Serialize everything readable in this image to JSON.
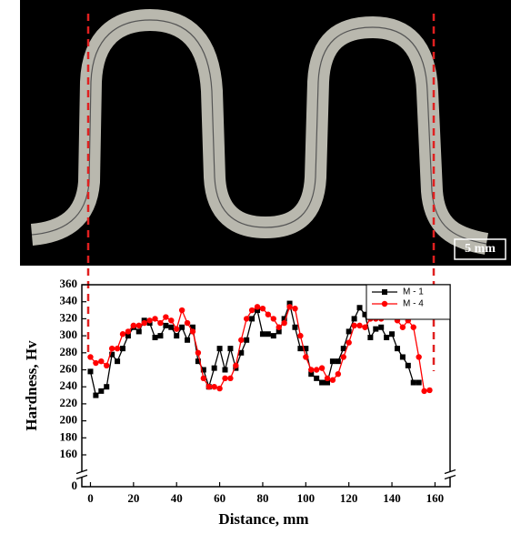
{
  "image": {
    "scale_bar": "5 mm"
  },
  "chart_data": {
    "type": "line",
    "x_label": "Distance, mm",
    "y_label": "Hardness, Hv",
    "x": [
      0,
      2.5,
      5,
      7.5,
      10,
      12.5,
      15,
      17.5,
      20,
      22.5,
      25,
      27.5,
      30,
      32.5,
      35,
      37.5,
      40,
      42.5,
      45,
      47.5,
      50,
      52.5,
      55,
      57.5,
      60,
      62.5,
      65,
      67.5,
      70,
      72.5,
      75,
      77.5,
      80,
      82.5,
      85,
      87.5,
      90,
      92.5,
      95,
      97.5,
      100,
      102.5,
      105,
      107.5,
      110,
      112.5,
      115,
      117.5,
      120,
      122.5,
      125,
      127.5,
      130,
      132.5,
      135,
      137.5,
      140,
      142.5,
      145,
      147.5,
      150,
      152.5,
      155,
      157.5
    ],
    "series": [
      {
        "name": "M - 1",
        "color": "#000000",
        "marker": "square",
        "values": [
          258,
          230,
          235,
          240,
          278,
          270,
          285,
          300,
          310,
          305,
          318,
          315,
          298,
          300,
          312,
          310,
          300,
          310,
          295,
          310,
          270,
          260,
          240,
          262,
          285,
          260,
          285,
          262,
          280,
          295,
          320,
          330,
          302,
          302,
          300,
          305,
          320,
          338,
          310,
          285,
          285,
          255,
          250,
          245,
          245,
          270,
          270,
          285,
          305,
          320,
          333,
          325,
          298,
          308,
          310,
          298,
          302,
          285,
          275,
          265,
          245,
          245,
          null,
          null
        ]
      },
      {
        "name": "M - 4",
        "color": "#ff0000",
        "marker": "circle",
        "values": [
          275,
          268,
          270,
          265,
          285,
          285,
          302,
          305,
          312,
          312,
          315,
          318,
          320,
          315,
          322,
          318,
          308,
          330,
          315,
          305,
          280,
          250,
          240,
          240,
          238,
          250,
          250,
          265,
          295,
          320,
          330,
          334,
          332,
          325,
          320,
          310,
          315,
          334,
          332,
          300,
          275,
          260,
          260,
          262,
          250,
          248,
          255,
          275,
          292,
          312,
          312,
          310,
          320,
          320,
          320,
          325,
          330,
          318,
          310,
          318,
          310,
          275,
          235,
          236
        ]
      }
    ],
    "xlim": [
      -4,
      167
    ],
    "xticks": [
      0,
      20,
      40,
      60,
      80,
      100,
      120,
      140,
      160
    ],
    "ylim": [
      0,
      360
    ],
    "yticks": [
      0,
      160,
      180,
      200,
      220,
      240,
      260,
      280,
      300,
      320,
      340,
      360
    ],
    "legend": "upper right"
  }
}
